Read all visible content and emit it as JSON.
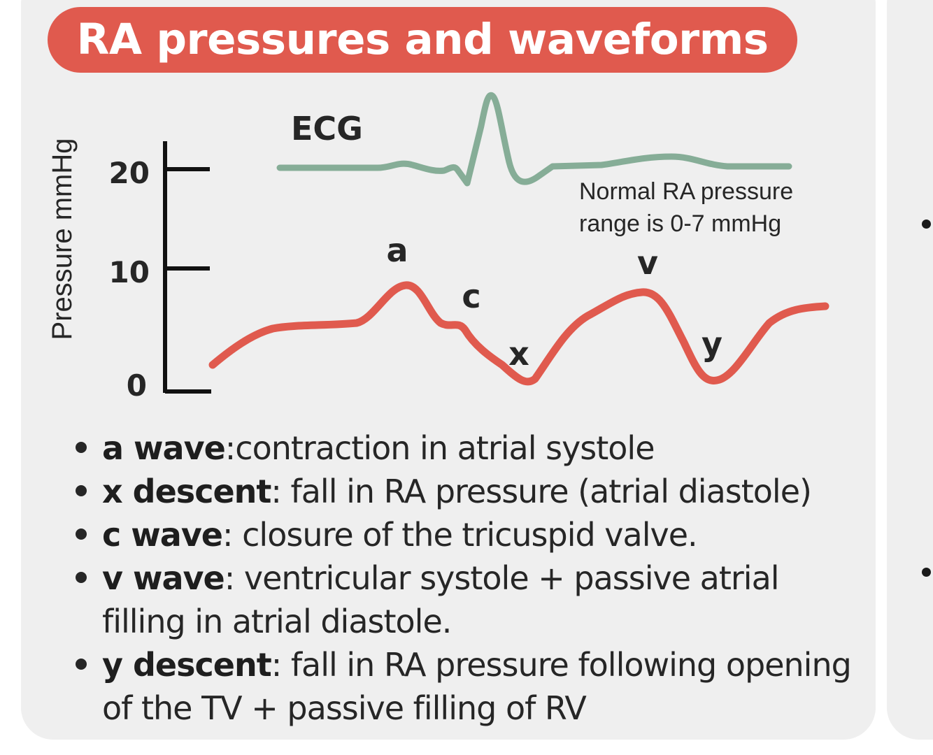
{
  "title": "RA pressures and waveforms",
  "colors": {
    "title_bg": "#e05a4e",
    "ra_wave": "#e05a4e",
    "ecg_wave": "#86ad97",
    "card_bg": "#efefef",
    "text": "#262626"
  },
  "axis": {
    "label": "Pressure mmHg",
    "ticks": [
      "20",
      "10",
      "0"
    ]
  },
  "ecg_label": "ECG",
  "normal_range_note": {
    "line1": "Normal RA pressure",
    "line2": "range is 0-7 mmHg"
  },
  "wave_labels": {
    "a": "a",
    "c": "c",
    "x": "x",
    "v": "v",
    "y": "y"
  },
  "bullets": [
    {
      "term": "a wave",
      "desc": ":contraction in atrial systole"
    },
    {
      "term": "x descent",
      "desc": ": fall in RA pressure (atrial diastole)"
    },
    {
      "term": "c wave",
      "desc": ": closure of the tricuspid valve."
    },
    {
      "term": "v wave",
      "desc": ": ventricular systole + passive atrial filling in atrial diastole."
    },
    {
      "term": "y descent",
      "desc": ": fall in RA pressure following opening of the TV + passive filling of RV"
    }
  ]
}
